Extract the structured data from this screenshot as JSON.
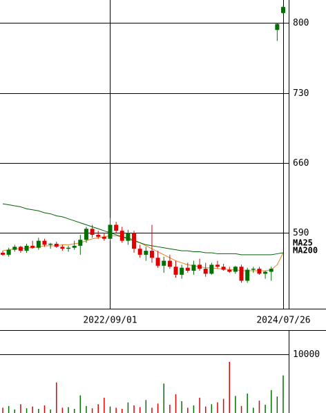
{
  "chart_data": [
    {
      "type": "candlestick",
      "up_color": "#007000",
      "down_color": "#e00000",
      "open": [
        570,
        568,
        573,
        576,
        572,
        577,
        575,
        582,
        578,
        579,
        576,
        574,
        575,
        577,
        583,
        594,
        588,
        586,
        584,
        598,
        592,
        582,
        590,
        574,
        568,
        572,
        565,
        557,
        562,
        556,
        548,
        555,
        552,
        558,
        554,
        549,
        558,
        556,
        553,
        551,
        556,
        542,
        553,
        554,
        549,
        551,
        793,
        810
      ],
      "high": [
        572,
        575,
        578,
        577,
        579,
        582,
        585,
        584,
        580,
        581,
        578,
        577,
        582,
        588,
        596,
        598,
        592,
        590,
        605,
        601,
        596,
        593,
        592,
        578,
        576,
        598,
        572,
        566,
        568,
        562,
        558,
        560,
        562,
        564,
        560,
        560,
        562,
        559,
        556,
        557,
        558,
        555,
        556,
        556,
        552,
        556,
        800,
        817
      ],
      "low": [
        567,
        566,
        571,
        570,
        570,
        574,
        573,
        576,
        574,
        575,
        572,
        571,
        573,
        568,
        580,
        585,
        584,
        582,
        582,
        590,
        580,
        578,
        570,
        565,
        562,
        560,
        555,
        550,
        554,
        545,
        544,
        550,
        548,
        552,
        546,
        548,
        554,
        552,
        550,
        549,
        540,
        540,
        550,
        548,
        544,
        542,
        782,
        809
      ],
      "close": [
        568,
        573,
        576,
        572,
        577,
        575,
        582,
        578,
        579,
        576,
        574,
        575,
        577,
        583,
        594,
        588,
        586,
        584,
        598,
        592,
        582,
        590,
        574,
        568,
        572,
        565,
        557,
        562,
        556,
        548,
        555,
        552,
        558,
        554,
        549,
        558,
        556,
        553,
        551,
        556,
        542,
        553,
        554,
        549,
        551,
        554,
        799,
        816
      ],
      "series": [
        {
          "name": "MA25",
          "color": "#e8841e",
          "values": [
            572,
            573,
            574,
            574,
            575,
            575,
            576,
            577,
            577,
            577,
            578,
            578,
            579,
            580,
            582,
            584,
            585,
            586,
            587,
            587,
            586,
            585,
            583,
            580,
            577,
            574,
            571,
            568,
            565,
            562,
            560,
            558,
            557,
            556,
            555,
            555,
            554,
            554,
            553,
            553,
            552,
            552,
            552,
            552,
            552,
            553,
            558,
            570
          ]
        },
        {
          "name": "MA200",
          "color": "#006400",
          "values": [
            619,
            618,
            617,
            616,
            614,
            613,
            612,
            610,
            609,
            607,
            606,
            604,
            602,
            600,
            598,
            596,
            594,
            592,
            590,
            588,
            586,
            584,
            582,
            580,
            578,
            577,
            576,
            575,
            574,
            573,
            572,
            572,
            571,
            571,
            570,
            570,
            569,
            569,
            569,
            569,
            568,
            568,
            568,
            568,
            568,
            568,
            569,
            570
          ]
        }
      ],
      "xticks": [
        {
          "value": 18,
          "label": "2022/09/01"
        },
        {
          "value": 47,
          "label": "2024/07/26"
        }
      ],
      "ylim": [
        514,
        823
      ],
      "yticks": [
        590,
        660,
        730,
        800
      ],
      "grid": true
    },
    {
      "type": "bar",
      "values": [
        900,
        1200,
        600,
        1500,
        800,
        1100,
        700,
        1300,
        600,
        5200,
        900,
        1000,
        700,
        3000,
        1200,
        800,
        1500,
        2600,
        1100,
        900,
        700,
        1800,
        1300,
        1000,
        2200,
        900,
        1600,
        5000,
        1400,
        3200,
        2000,
        900,
        1300,
        2600,
        1100,
        1500,
        1800,
        2400,
        8700,
        2900,
        1200,
        3300,
        900,
        2100,
        1400,
        3900,
        2800,
        6400
      ],
      "ylim": [
        0,
        14100
      ],
      "yticks": [
        10000
      ],
      "grid": true
    }
  ]
}
